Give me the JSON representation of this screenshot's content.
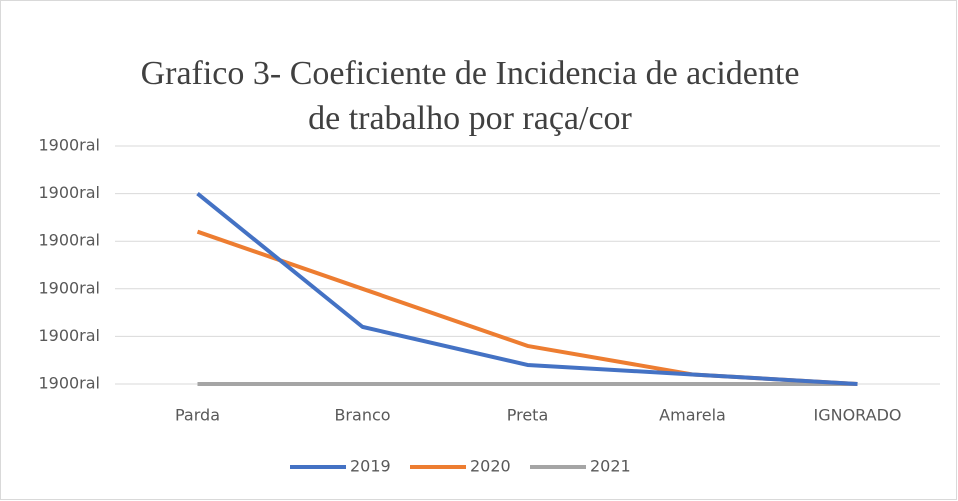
{
  "chart_data": {
    "type": "line",
    "title": [
      "Grafico 3- Coeficiente de Incidencia de acidente",
      "de trabalho por raça/cor"
    ],
    "categories": [
      "Parda",
      "Branco",
      "Preta",
      "Amarela",
      "IGNORADO"
    ],
    "series": [
      {
        "name": "2019",
        "color": "#4472c4",
        "values": [
          4.0,
          1.2,
          0.4,
          0.2,
          0
        ]
      },
      {
        "name": "2020",
        "color": "#ed7d31",
        "values": [
          3.2,
          2.0,
          0.8,
          0.2,
          0
        ]
      },
      {
        "name": "2021",
        "color": "#a5a5a5",
        "values": [
          0,
          0,
          0,
          0,
          0
        ]
      }
    ],
    "ylim": [
      0,
      5
    ],
    "yticks": [
      {
        "value": 0,
        "label": "1900ral"
      },
      {
        "value": 1,
        "label": "1900ral"
      },
      {
        "value": 2,
        "label": "1900ral"
      },
      {
        "value": 3,
        "label": "1900ral"
      },
      {
        "value": 4,
        "label": "1900ral"
      },
      {
        "value": 5,
        "label": "1900ral"
      }
    ],
    "grid": true,
    "legend": "bottom"
  }
}
